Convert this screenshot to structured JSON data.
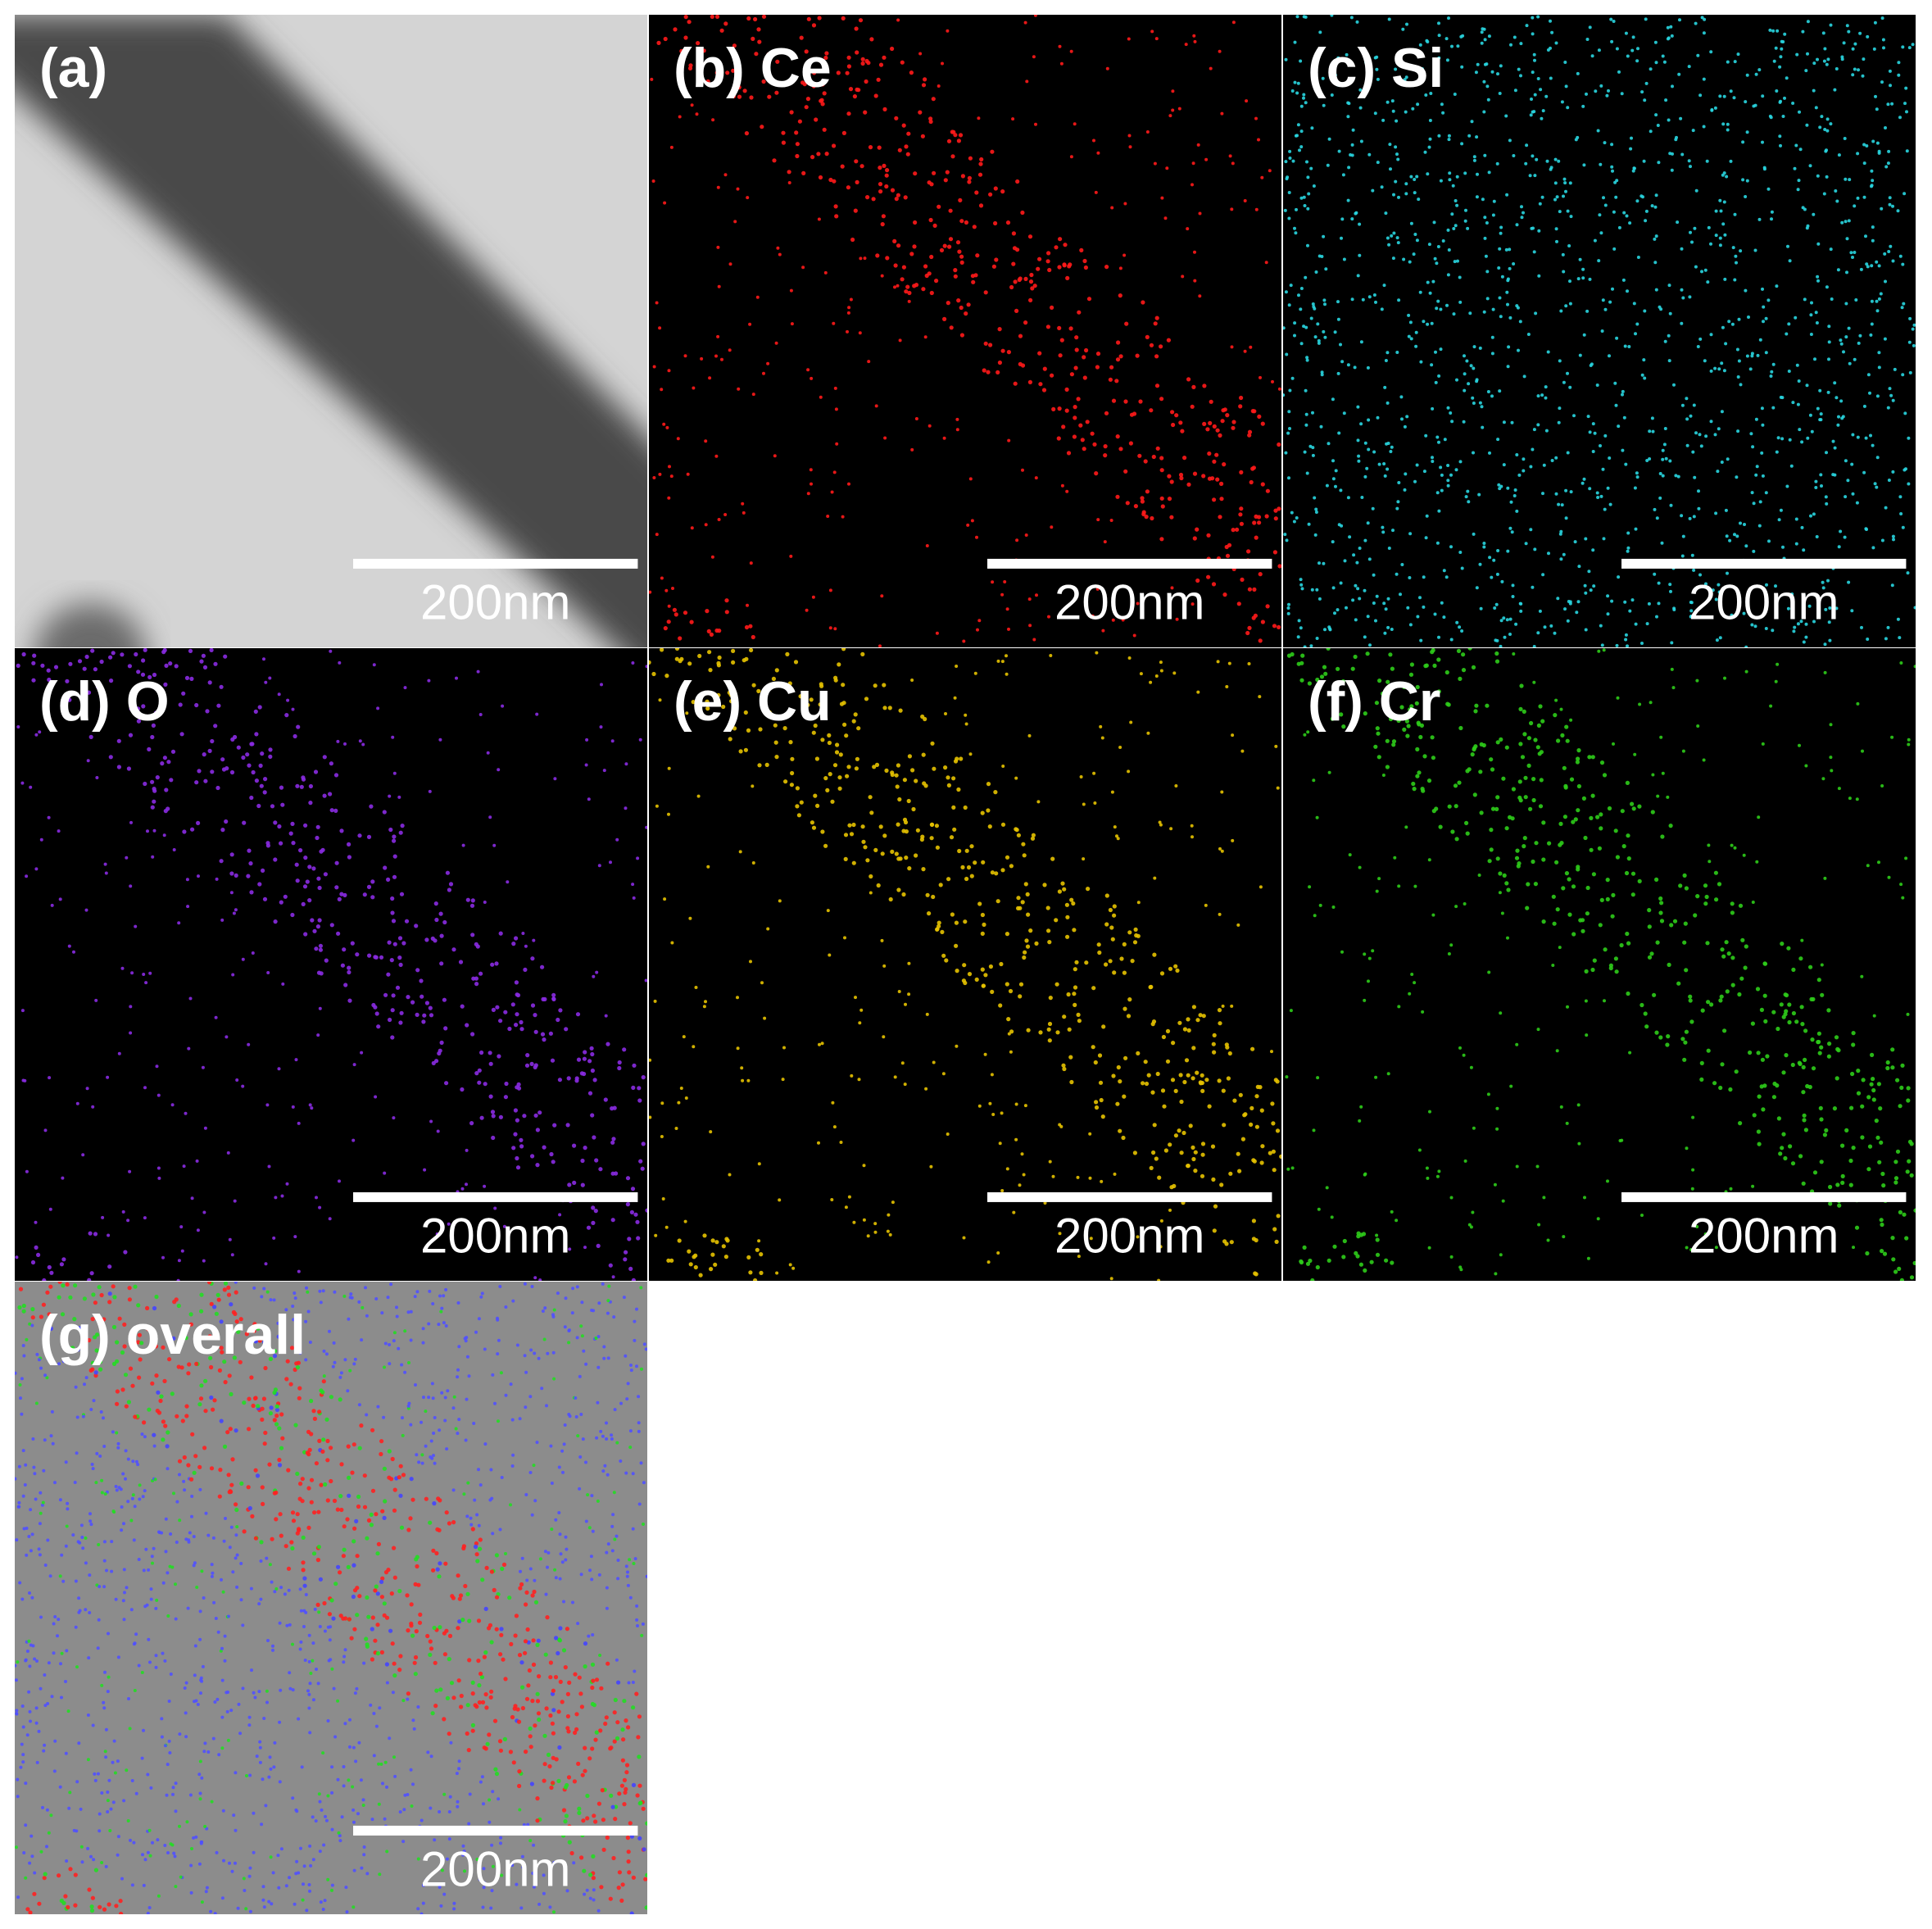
{
  "panels": [
    {
      "label": "(a)",
      "scale_bar": "200nm",
      "color": "#4a4a4a"
    },
    {
      "label": "(b) Ce",
      "scale_bar": "200nm",
      "color": "#ff1a1a"
    },
    {
      "label": "(c) Si",
      "scale_bar": "200nm",
      "color": "#29d6e0"
    },
    {
      "label": "(d) O",
      "scale_bar": "200nm",
      "color": "#8a2be2"
    },
    {
      "label": "(e) Cu",
      "scale_bar": "200nm",
      "color": "#e6c200"
    },
    {
      "label": "(f) Cr",
      "scale_bar": "200nm",
      "color": "#2ecc1a"
    },
    {
      "label": "(g) overall",
      "scale_bar": "200nm",
      "color": "#ff2020"
    }
  ]
}
